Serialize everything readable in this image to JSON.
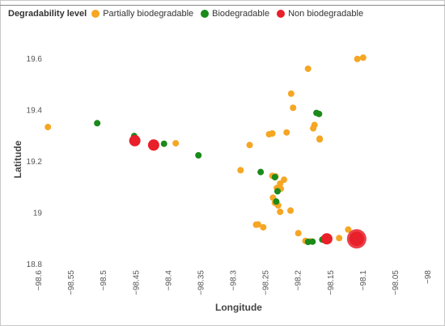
{
  "legend": {
    "title": "Degradability level",
    "items": [
      {
        "label": "Partially biodegradable",
        "color": "#f5a623"
      },
      {
        "label": "Biodegradable",
        "color": "#1a8a1a"
      },
      {
        "label": "Non biodegradable",
        "color": "#e8202a"
      }
    ]
  },
  "chart_data": {
    "type": "scatter",
    "title": "",
    "xlabel": "Longitude",
    "ylabel": "Latitude",
    "xlim": [
      -98.6,
      -98.0
    ],
    "ylim": [
      18.8,
      19.65
    ],
    "x_ticks": [
      "-98.6",
      "-98.55",
      "-98.5",
      "-98.45",
      "-98.4",
      "-98.35",
      "-98.3",
      "-98.25",
      "-98.2",
      "-98.15",
      "-98.1",
      "-98.05",
      "-98"
    ],
    "x_tick_values": [
      -98.6,
      -98.55,
      -98.5,
      -98.45,
      -98.4,
      -98.35,
      -98.3,
      -98.25,
      -98.2,
      -98.15,
      -98.1,
      -98.05,
      -98.0
    ],
    "y_ticks": [
      "18.8",
      "19",
      "19.2",
      "19.4",
      "19.6"
    ],
    "y_tick_values": [
      18.8,
      19.0,
      19.2,
      19.4,
      19.6
    ],
    "grid": false,
    "legend_position": "top",
    "series": [
      {
        "name": "Partially biodegradable",
        "color": "#f5a623",
        "points": [
          {
            "x": -98.586,
            "y": 19.335,
            "size": 1
          },
          {
            "x": -98.389,
            "y": 19.272,
            "size": 1
          },
          {
            "x": -98.275,
            "y": 19.265,
            "size": 1
          },
          {
            "x": -98.289,
            "y": 19.167,
            "size": 1
          },
          {
            "x": -98.245,
            "y": 19.307,
            "size": 1
          },
          {
            "x": -98.24,
            "y": 19.31,
            "size": 1
          },
          {
            "x": -98.218,
            "y": 19.314,
            "size": 1
          },
          {
            "x": -98.185,
            "y": 19.562,
            "size": 1
          },
          {
            "x": -98.211,
            "y": 19.465,
            "size": 1
          },
          {
            "x": -98.208,
            "y": 19.41,
            "size": 1
          },
          {
            "x": -98.175,
            "y": 19.343,
            "size": 1
          },
          {
            "x": -98.177,
            "y": 19.33,
            "size": 1
          },
          {
            "x": -98.167,
            "y": 19.29,
            "size": 1
          },
          {
            "x": -98.167,
            "y": 19.287,
            "size": 1
          },
          {
            "x": -98.109,
            "y": 19.6,
            "size": 1
          },
          {
            "x": -98.1,
            "y": 19.605,
            "size": 1
          },
          {
            "x": -98.24,
            "y": 19.145,
            "size": 1
          },
          {
            "x": -98.235,
            "y": 19.143,
            "size": 1
          },
          {
            "x": -98.228,
            "y": 19.115,
            "size": 1
          },
          {
            "x": -98.222,
            "y": 19.13,
            "size": 1
          },
          {
            "x": -98.233,
            "y": 19.098,
            "size": 1
          },
          {
            "x": -98.227,
            "y": 19.095,
            "size": 1
          },
          {
            "x": -98.239,
            "y": 19.06,
            "size": 1
          },
          {
            "x": -98.236,
            "y": 19.04,
            "size": 1
          },
          {
            "x": -98.231,
            "y": 19.03,
            "size": 1
          },
          {
            "x": -98.228,
            "y": 19.005,
            "size": 1
          },
          {
            "x": -98.212,
            "y": 19.01,
            "size": 1
          },
          {
            "x": -98.262,
            "y": 18.956,
            "size": 1
          },
          {
            "x": -98.265,
            "y": 18.955,
            "size": 1
          },
          {
            "x": -98.254,
            "y": 18.945,
            "size": 1
          },
          {
            "x": -98.2,
            "y": 18.922,
            "size": 1
          },
          {
            "x": -98.189,
            "y": 18.892,
            "size": 1
          },
          {
            "x": -98.182,
            "y": 18.89,
            "size": 1
          },
          {
            "x": -98.161,
            "y": 18.9,
            "size": 1
          },
          {
            "x": -98.137,
            "y": 18.903,
            "size": 1
          },
          {
            "x": -98.123,
            "y": 18.936,
            "size": 1
          },
          {
            "x": -98.113,
            "y": 18.9,
            "size": 1
          },
          {
            "x": -98.108,
            "y": 18.899,
            "size": 2
          }
        ]
      },
      {
        "name": "Biodegradable",
        "color": "#1a8a1a",
        "points": [
          {
            "x": -98.51,
            "y": 19.35,
            "size": 1
          },
          {
            "x": -98.453,
            "y": 19.3,
            "size": 1
          },
          {
            "x": -98.407,
            "y": 19.27,
            "size": 1
          },
          {
            "x": -98.354,
            "y": 19.225,
            "size": 1
          },
          {
            "x": -98.258,
            "y": 19.16,
            "size": 1
          },
          {
            "x": -98.236,
            "y": 19.14,
            "size": 1
          },
          {
            "x": -98.232,
            "y": 19.085,
            "size": 1
          },
          {
            "x": -98.234,
            "y": 19.045,
            "size": 1
          },
          {
            "x": -98.172,
            "y": 19.39,
            "size": 1
          },
          {
            "x": -98.168,
            "y": 19.386,
            "size": 1
          },
          {
            "x": -98.185,
            "y": 18.888,
            "size": 1
          },
          {
            "x": -98.178,
            "y": 18.889,
            "size": 1
          },
          {
            "x": -98.163,
            "y": 18.897,
            "size": 1
          },
          {
            "x": -98.112,
            "y": 18.903,
            "size": 1
          }
        ]
      },
      {
        "name": "Non biodegradable",
        "color": "#e8202a",
        "points": [
          {
            "x": -98.452,
            "y": 19.282,
            "size": 2
          },
          {
            "x": -98.423,
            "y": 19.265,
            "size": 2
          },
          {
            "x": -98.156,
            "y": 18.9,
            "size": 2
          },
          {
            "x": -98.11,
            "y": 18.9,
            "size": 4
          }
        ]
      }
    ]
  }
}
